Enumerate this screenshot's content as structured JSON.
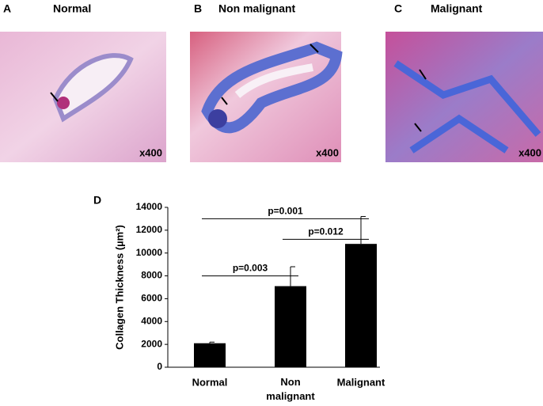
{
  "panels": [
    {
      "letter": "A",
      "title": "Normal",
      "magnification": "x400"
    },
    {
      "letter": "B",
      "title": "Non malignant",
      "magnification": "x400"
    },
    {
      "letter": "C",
      "title": "Malignant",
      "magnification": "x400"
    }
  ],
  "chart_data": {
    "type": "bar",
    "letter": "D",
    "y_label": "Collagen Thickness (µm²)",
    "categories": [
      "Normal",
      "Non malignant",
      "Malignant"
    ],
    "values": [
      2100,
      7100,
      10800
    ],
    "errors": [
      100,
      1700,
      2400
    ],
    "color": "#000000",
    "ylim": [
      0,
      14000
    ],
    "yticks": [
      0,
      2000,
      4000,
      6000,
      8000,
      10000,
      12000,
      14000
    ],
    "comparisons": [
      {
        "from": 0,
        "to": 1,
        "y": 8000,
        "label": "p=0.003"
      },
      {
        "from": 1,
        "to": 2,
        "y": 11200,
        "label": "p=0.012"
      },
      {
        "from": 0,
        "to": 2,
        "y": 13000,
        "label": "p=0.001"
      }
    ]
  }
}
